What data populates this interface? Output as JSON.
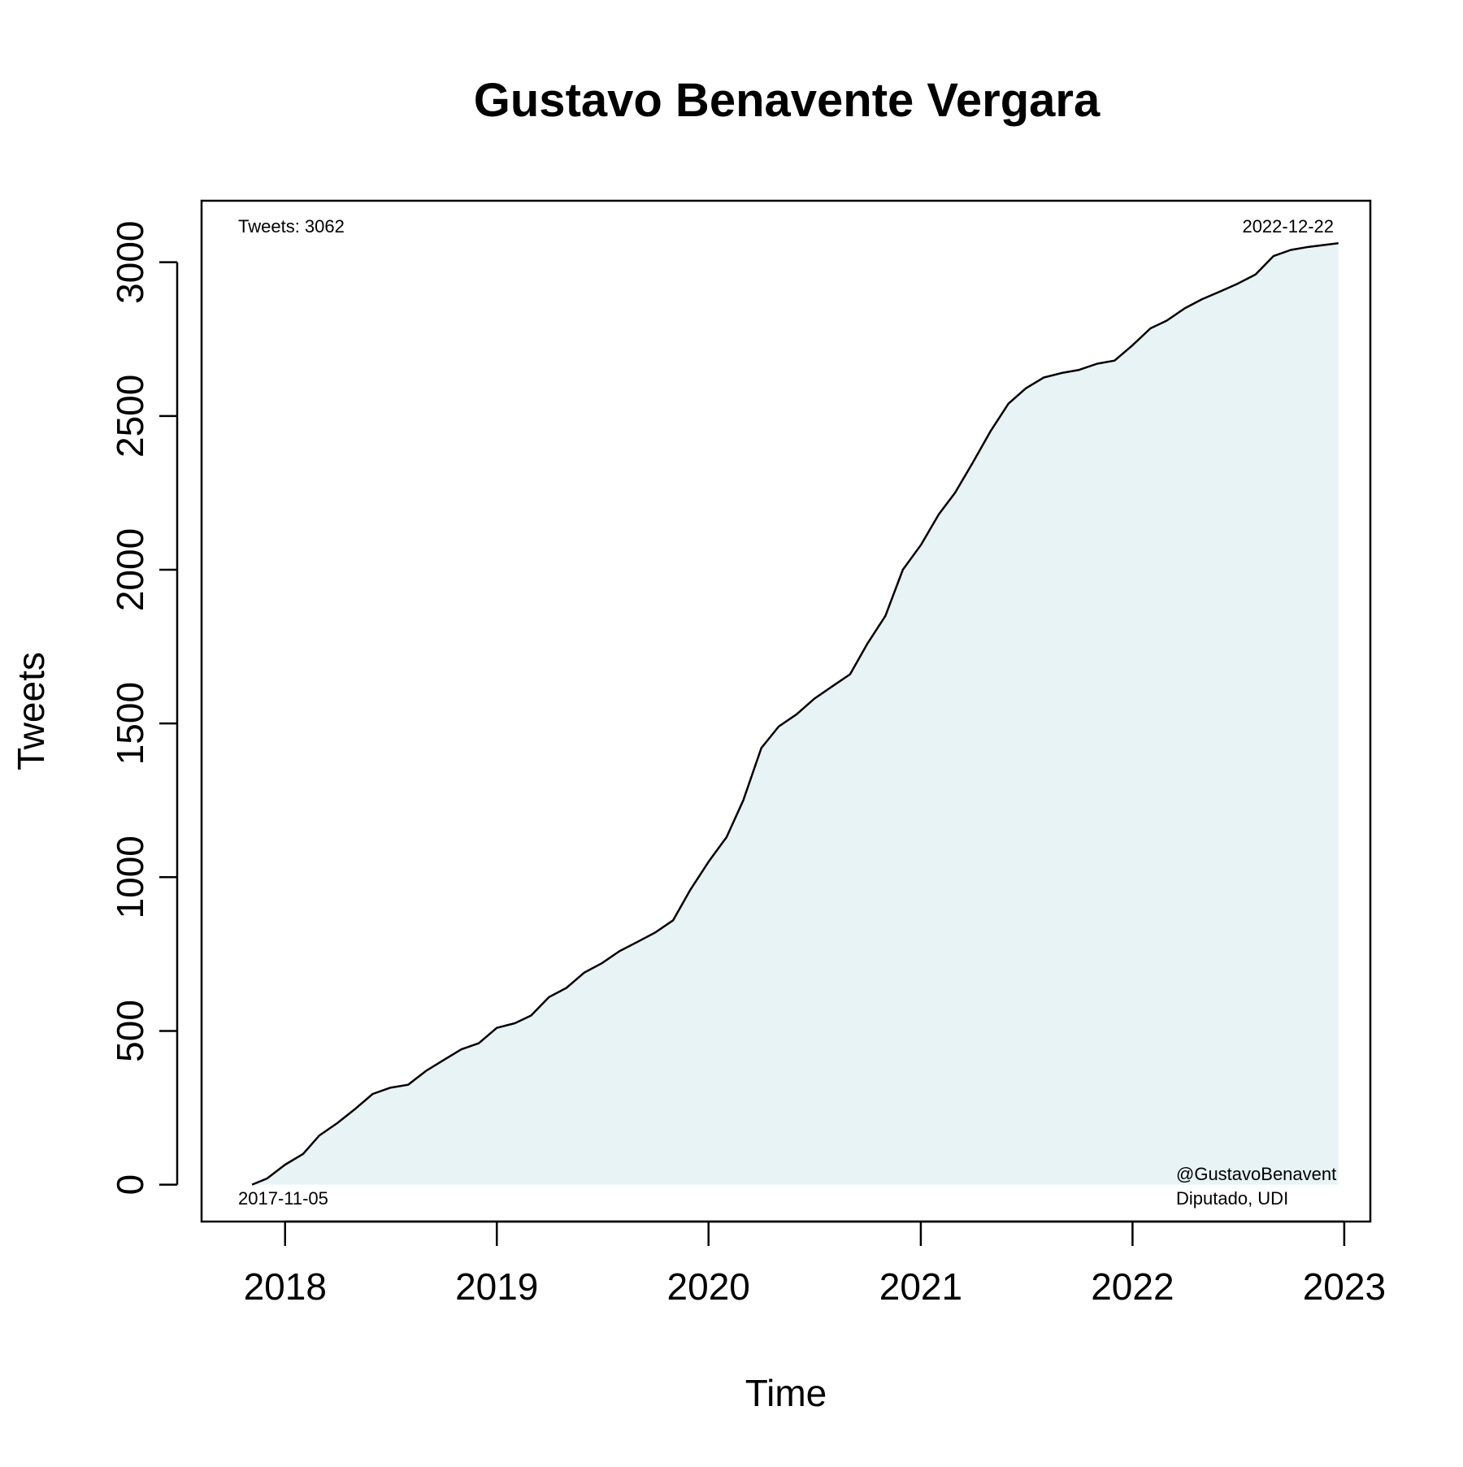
{
  "chart_data": {
    "type": "area",
    "title": "Gustavo Benavente Vergara",
    "xlabel": "Time",
    "ylabel": "Tweets",
    "x_axis_type": "date",
    "x_ticks": [
      "2018",
      "2019",
      "2020",
      "2021",
      "2022",
      "2023"
    ],
    "y_ticks": [
      "0",
      "500",
      "1000",
      "1500",
      "2000",
      "2500",
      "3000"
    ],
    "xlim": [
      "2017-08-10",
      "2023-02-15"
    ],
    "ylim": [
      -120,
      3200
    ],
    "grid": false,
    "fill_color": "#e8f3f6",
    "line_color": "#000000",
    "annotations": {
      "total": "Tweets: 3062",
      "end_date": "2022-12-22",
      "start_date": "2017-11-05",
      "handle": "@GustavoBenavent",
      "role": "Diputado, UDI"
    },
    "series": [
      {
        "x": [
          "2017-11-05",
          "2017-12-01",
          "2018-01-01",
          "2018-02-01",
          "2018-03-01",
          "2018-04-01",
          "2018-05-01",
          "2018-06-01",
          "2018-07-01",
          "2018-08-01",
          "2018-09-01",
          "2018-10-01",
          "2018-11-01",
          "2018-12-01",
          "2019-01-01",
          "2019-02-01",
          "2019-03-01",
          "2019-04-01",
          "2019-05-01",
          "2019-06-01",
          "2019-07-01",
          "2019-08-01",
          "2019-09-01",
          "2019-10-01",
          "2019-11-01",
          "2019-12-01",
          "2020-01-01",
          "2020-02-01",
          "2020-03-01",
          "2020-04-01",
          "2020-05-01",
          "2020-06-01",
          "2020-07-01",
          "2020-08-01",
          "2020-09-01",
          "2020-10-01",
          "2020-11-01",
          "2020-12-01",
          "2021-01-01",
          "2021-02-01",
          "2021-03-01",
          "2021-04-01",
          "2021-05-01",
          "2021-06-01",
          "2021-07-01",
          "2021-08-01",
          "2021-09-01",
          "2021-10-01",
          "2021-11-01",
          "2021-12-01",
          "2022-01-01",
          "2022-02-01",
          "2022-03-01",
          "2022-04-01",
          "2022-05-01",
          "2022-06-01",
          "2022-07-01",
          "2022-08-01",
          "2022-09-01",
          "2022-10-01",
          "2022-11-01",
          "2022-12-22"
        ],
        "y": [
          0,
          20,
          65,
          100,
          160,
          200,
          245,
          295,
          315,
          325,
          370,
          405,
          440,
          460,
          510,
          525,
          550,
          610,
          640,
          690,
          720,
          760,
          790,
          820,
          860,
          960,
          1050,
          1130,
          1250,
          1420,
          1490,
          1530,
          1580,
          1620,
          1660,
          1760,
          1850,
          2000,
          2080,
          2180,
          2250,
          2350,
          2450,
          2540,
          2590,
          2625,
          2640,
          2650,
          2670,
          2680,
          2730,
          2785,
          2810,
          2850,
          2880,
          2905,
          2930,
          2960,
          3020,
          3040,
          3050,
          3062
        ]
      }
    ]
  }
}
